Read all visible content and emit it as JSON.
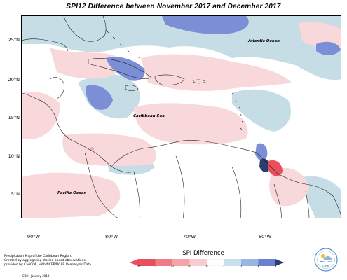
{
  "title": "SPI12 Difference between November 2017 and December 2017",
  "map": {
    "latitude_labels": [
      "25°N",
      "20°N",
      "15°N",
      "10°N",
      "5°N"
    ],
    "longitude_labels": [
      "90°W",
      "80°W",
      "70°W",
      "60°W"
    ],
    "region_labels": {
      "atlantic": "Atlantic Ocean",
      "caribbean": "Caribbean Sea",
      "pacific": "Pacific Ocean"
    },
    "colors": {
      "ocean_light_blue": "#c6dde6",
      "land_white": "#ffffff",
      "light_pink": "#f9d8dc",
      "medium_pink": "#f2a9b1",
      "red": "#e8505d",
      "light_blue": "#b8d3e3",
      "medium_blue": "#7b8ed6",
      "dark_blue": "#2d3b6e"
    }
  },
  "legend": {
    "title": "SPI Difference",
    "ticks": [
      "-4",
      "-3",
      "-2",
      "-1",
      "0",
      "1",
      "2",
      "3",
      "4"
    ],
    "colors": [
      "#e8505d",
      "#ee7b85",
      "#f3a4ab",
      "#f8cdd1",
      "#ffffff",
      "#c9dfe9",
      "#99b6e2",
      "#6b7fd1",
      "#2d3b6e"
    ]
  },
  "footer": {
    "lines": [
      "Precipitation Map of the Caribbean Region.",
      "Created by aggregating station based observations,",
      "provided by CariCOF, with NCEP/NCAR Reanalysis Data."
    ],
    "credit": "CIMH January-2018",
    "logo_text": "CIMH"
  }
}
